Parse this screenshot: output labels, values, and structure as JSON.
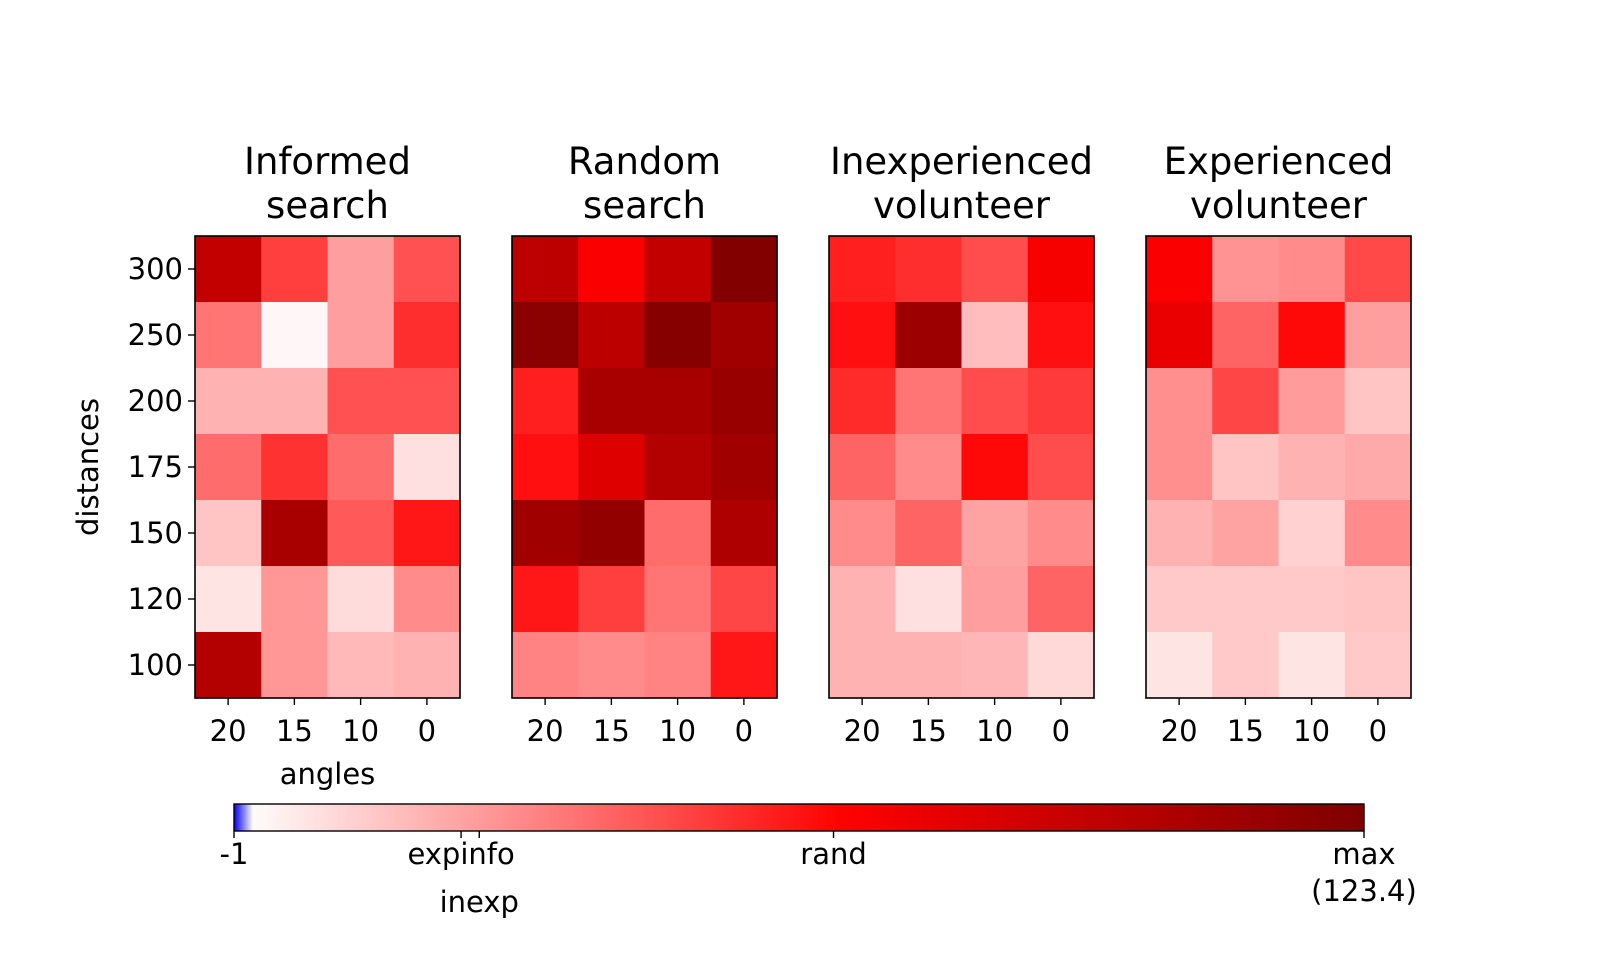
{
  "chart_data": {
    "type": "heatmap",
    "xlabel": "angles",
    "ylabel": "distances",
    "x_ticks": [
      "20",
      "15",
      "10",
      "0"
    ],
    "y_ticks": [
      "300",
      "250",
      "200",
      "175",
      "150",
      "120",
      "100"
    ],
    "value_range": [
      -1,
      123.4
    ],
    "panels": [
      {
        "title_lines": [
          "Informed",
          "search"
        ],
        "values": [
          [
            93,
            50,
            25,
            45
          ],
          [
            36,
            2,
            25,
            54
          ],
          [
            20,
            20,
            45,
            45
          ],
          [
            38,
            53,
            38,
            8
          ],
          [
            15,
            105,
            43,
            60
          ],
          [
            7,
            27,
            9,
            30
          ],
          [
            100,
            27,
            18,
            20
          ]
        ]
      },
      {
        "title_lines": [
          "Random",
          "search"
        ],
        "values": [
          [
            96,
            68,
            93,
            122
          ],
          [
            118,
            96,
            120,
            108
          ],
          [
            58,
            105,
            105,
            112
          ],
          [
            62,
            81,
            100,
            108
          ],
          [
            108,
            115,
            38,
            102
          ],
          [
            60,
            50,
            36,
            48
          ],
          [
            32,
            30,
            32,
            60
          ]
        ]
      },
      {
        "title_lines": [
          "Inexperienced",
          "volunteer"
        ],
        "values": [
          [
            58,
            54,
            46,
            70
          ],
          [
            62,
            110,
            17,
            62
          ],
          [
            55,
            36,
            46,
            51
          ],
          [
            40,
            30,
            64,
            46
          ],
          [
            30,
            40,
            24,
            30
          ],
          [
            20,
            8,
            25,
            40
          ],
          [
            20,
            20,
            19,
            10
          ]
        ]
      },
      {
        "title_lines": [
          "Experienced",
          "volunteer"
        ],
        "values": [
          [
            68,
            28,
            30,
            47
          ],
          [
            75,
            40,
            64,
            25
          ],
          [
            29,
            48,
            26,
            15
          ],
          [
            29,
            15,
            20,
            22
          ],
          [
            20,
            24,
            12,
            30
          ],
          [
            14,
            14,
            14,
            15
          ],
          [
            7,
            14,
            7,
            14
          ]
        ]
      }
    ],
    "colorbar": {
      "placement": "bottom",
      "range": [
        -1,
        123.4
      ],
      "colors": {
        "min": "#0000ff",
        "zero": "#ffffff",
        "mid": "#ff0000",
        "max": "#7f0000"
      },
      "markers": [
        {
          "label": "-1",
          "value": -1
        },
        {
          "label": "expinfo",
          "value": 24
        },
        {
          "label": "inexp",
          "value": 26
        },
        {
          "label": "rand",
          "value": 65
        },
        {
          "label": "max\n(123.4)",
          "value": 123.4
        }
      ]
    }
  }
}
